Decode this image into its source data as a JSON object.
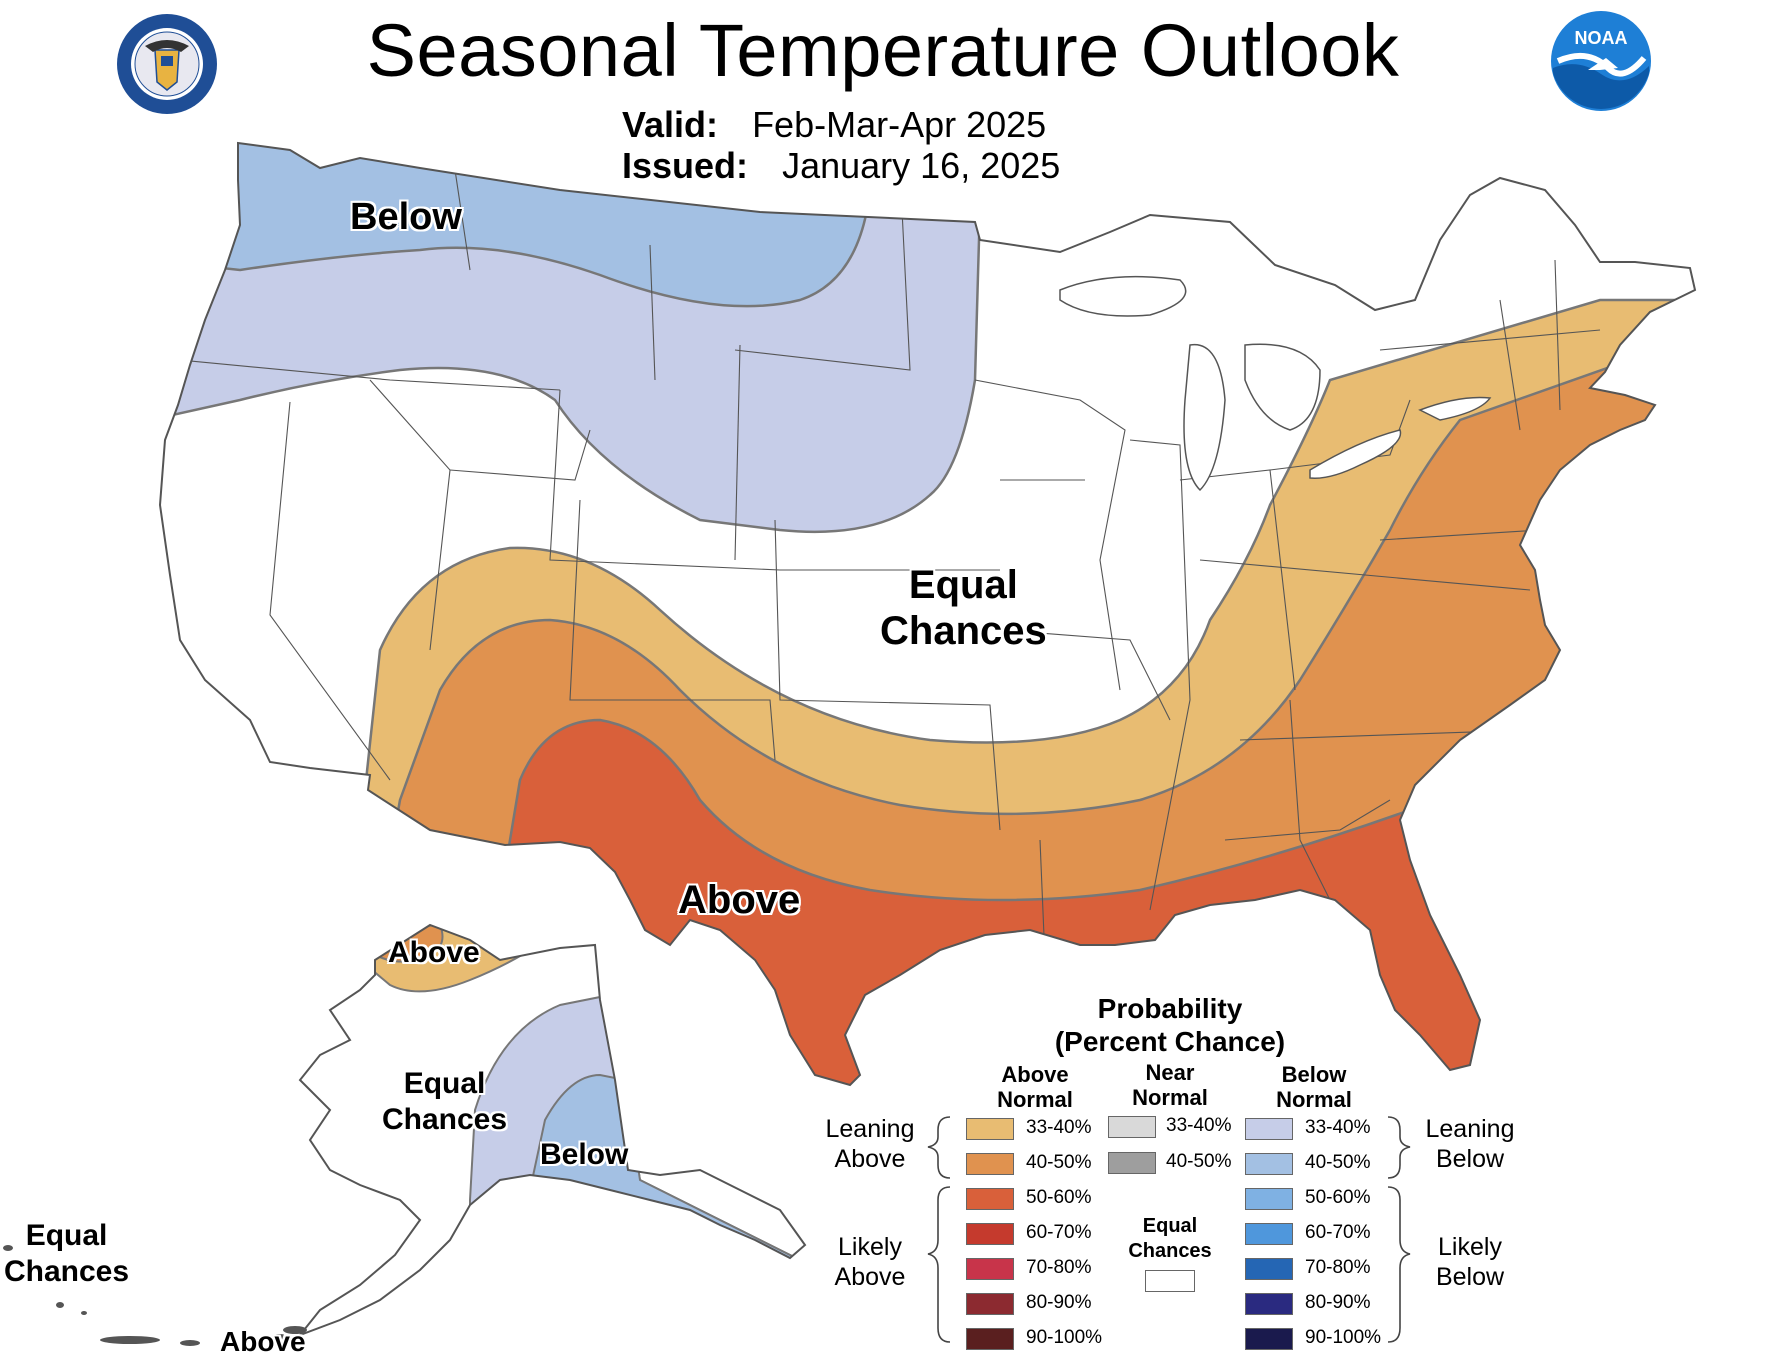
{
  "title": "Seasonal Temperature Outlook",
  "valid_label": "Valid:",
  "valid_value": "Feb-Mar-Apr 2025",
  "issued_label": "Issued:",
  "issued_value": "January 16, 2025",
  "logos": {
    "left": "department-of-commerce-seal",
    "right": "noaa-logo",
    "noaa_text": "NOAA"
  },
  "map_labels": {
    "below_nw": "Below",
    "equal_chances_conus": [
      "Equal",
      "Chances"
    ],
    "above_south": "Above",
    "ak_above": "Above",
    "ak_equal_chances": [
      "Equal",
      "Chances"
    ],
    "ak_below": "Below",
    "hi_equal_chances": [
      "Equal",
      "Chances"
    ],
    "hi_above": "Above"
  },
  "legend": {
    "title_line1": "Probability",
    "title_line2": "(Percent Chance)",
    "columns": {
      "above": [
        "Above",
        "Normal"
      ],
      "near": [
        "Near",
        "Normal"
      ],
      "below": [
        "Below",
        "Normal"
      ]
    },
    "above_items": [
      {
        "label": "33-40%",
        "color": "#e8bc72"
      },
      {
        "label": "40-50%",
        "color": "#e0924f"
      },
      {
        "label": "50-60%",
        "color": "#d9603a"
      },
      {
        "label": "60-70%",
        "color": "#c53a2d"
      },
      {
        "label": "70-80%",
        "color": "#c8344a"
      },
      {
        "label": "80-90%",
        "color": "#8c2a30"
      },
      {
        "label": "90-100%",
        "color": "#5a1f1f"
      }
    ],
    "near_items": [
      {
        "label": "33-40%",
        "color": "#d9d9d9"
      },
      {
        "label": "40-50%",
        "color": "#9e9e9e"
      }
    ],
    "near_equal": [
      "Equal",
      "Chances"
    ],
    "below_items": [
      {
        "label": "33-40%",
        "color": "#c6cde8"
      },
      {
        "label": "40-50%",
        "color": "#a3c0e3"
      },
      {
        "label": "50-60%",
        "color": "#7fb1e3"
      },
      {
        "label": "60-70%",
        "color": "#4f97dc"
      },
      {
        "label": "70-80%",
        "color": "#2566b4"
      },
      {
        "label": "80-90%",
        "color": "#2a2a80"
      },
      {
        "label": "90-100%",
        "color": "#1a1a4d"
      }
    ],
    "leaning_above": [
      "Leaning",
      "Above"
    ],
    "likely_above": [
      "Likely",
      "Above"
    ],
    "leaning_below": [
      "Leaning",
      "Below"
    ],
    "likely_below": [
      "Likely",
      "Below"
    ]
  }
}
